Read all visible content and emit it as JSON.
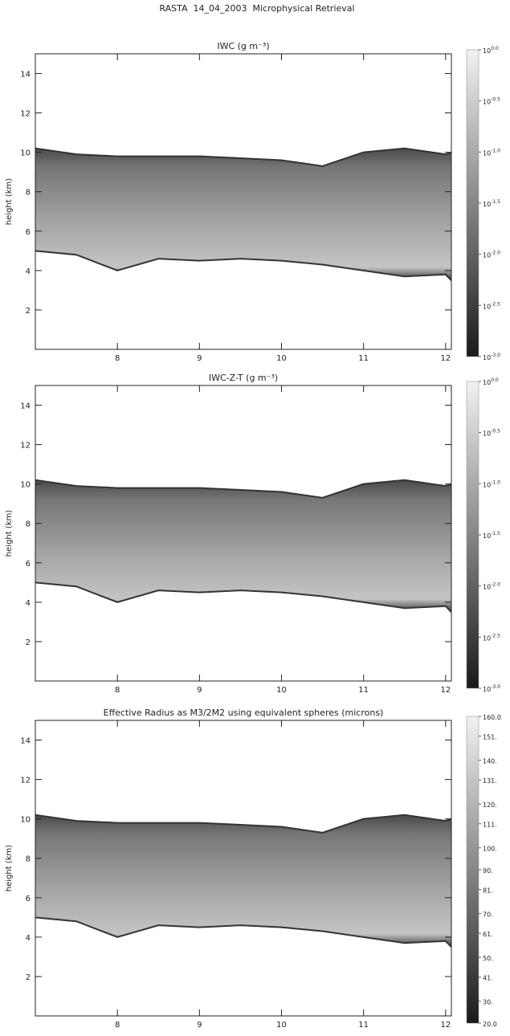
{
  "title": "RASTA  14_04_2003  Microphysical Retrieval",
  "chart_data": [
    {
      "type": "heatmap",
      "title": "IWC (g m⁻³)",
      "ylabel": "height (km)",
      "x": [
        7.0,
        7.5,
        8.0,
        8.5,
        9.0,
        9.5,
        10.0,
        10.5,
        11.0,
        11.5,
        12.0,
        12.07
      ],
      "top": [
        10.2,
        9.9,
        9.8,
        9.8,
        9.8,
        9.7,
        9.6,
        9.3,
        10.0,
        10.2,
        9.9,
        10.0
      ],
      "base": [
        5.0,
        4.8,
        4.0,
        4.6,
        4.5,
        4.6,
        4.5,
        4.3,
        4.0,
        3.7,
        3.8,
        3.5
      ],
      "xlim": [
        7.0,
        12.07
      ],
      "xticks": [
        8,
        9,
        10,
        11,
        12
      ],
      "ylim": [
        0,
        15
      ],
      "yticks": [
        2,
        4,
        6,
        8,
        10,
        12,
        14
      ],
      "colorbar": {
        "clim": [
          -3,
          0
        ],
        "ticks": [
          {
            "value": 0,
            "label": "10",
            "sup": "0.0"
          },
          {
            "value": -0.5,
            "label": "10",
            "sup": "-0.5"
          },
          {
            "value": -1,
            "label": "10",
            "sup": "-1.0"
          },
          {
            "value": -1.5,
            "label": "10",
            "sup": "-1.5"
          },
          {
            "value": -2,
            "label": "10",
            "sup": "-2.0"
          },
          {
            "value": -2.5,
            "label": "10",
            "sup": "-2.5"
          },
          {
            "value": -3,
            "label": "10",
            "sup": "-3.0"
          }
        ]
      }
    },
    {
      "type": "heatmap",
      "title": "IWC-Z-T (g m⁻³)",
      "ylabel": "height (km)",
      "x": [
        7.0,
        7.5,
        8.0,
        8.5,
        9.0,
        9.5,
        10.0,
        10.5,
        11.0,
        11.5,
        12.0,
        12.07
      ],
      "top": [
        10.2,
        9.9,
        9.8,
        9.8,
        9.8,
        9.7,
        9.6,
        9.3,
        10.0,
        10.2,
        9.9,
        10.0
      ],
      "base": [
        5.0,
        4.8,
        4.0,
        4.6,
        4.5,
        4.6,
        4.5,
        4.3,
        4.0,
        3.7,
        3.8,
        3.5
      ],
      "xlim": [
        7.0,
        12.07
      ],
      "xticks": [
        8,
        9,
        10,
        11,
        12
      ],
      "ylim": [
        0,
        15
      ],
      "yticks": [
        2,
        4,
        6,
        8,
        10,
        12,
        14
      ],
      "colorbar": {
        "clim": [
          -3,
          0
        ],
        "ticks": [
          {
            "value": 0,
            "label": "10",
            "sup": "0.0"
          },
          {
            "value": -0.5,
            "label": "10",
            "sup": "-0.5"
          },
          {
            "value": -1,
            "label": "10",
            "sup": "-1.0"
          },
          {
            "value": -1.5,
            "label": "10",
            "sup": "-1.5"
          },
          {
            "value": -2,
            "label": "10",
            "sup": "-2.0"
          },
          {
            "value": -2.5,
            "label": "10",
            "sup": "-2.5"
          },
          {
            "value": -3,
            "label": "10",
            "sup": "-3.0"
          }
        ]
      }
    },
    {
      "type": "heatmap",
      "title": "Effective Radius as M3/2M2 using equivalent spheres (microns)",
      "ylabel": "height (km)",
      "x": [
        7.0,
        7.5,
        8.0,
        8.5,
        9.0,
        9.5,
        10.0,
        10.5,
        11.0,
        11.5,
        12.0,
        12.07
      ],
      "top": [
        10.2,
        9.9,
        9.8,
        9.8,
        9.8,
        9.7,
        9.6,
        9.3,
        10.0,
        10.2,
        9.9,
        10.0
      ],
      "base": [
        5.0,
        4.8,
        4.0,
        4.6,
        4.5,
        4.6,
        4.5,
        4.3,
        4.0,
        3.7,
        3.8,
        3.5
      ],
      "xlim": [
        7.0,
        12.07
      ],
      "xticks": [
        8,
        9,
        10,
        11,
        12
      ],
      "ylim": [
        0,
        15
      ],
      "yticks": [
        2,
        4,
        6,
        8,
        10,
        12,
        14
      ],
      "colorbar": {
        "clim": [
          20,
          160
        ],
        "ticks": [
          {
            "value": 160,
            "label": "160.0"
          },
          {
            "value": 151,
            "label": "151."
          },
          {
            "value": 140,
            "label": "140."
          },
          {
            "value": 131,
            "label": "131."
          },
          {
            "value": 120,
            "label": "120."
          },
          {
            "value": 111,
            "label": "111."
          },
          {
            "value": 100,
            "label": "100."
          },
          {
            "value": 90,
            "label": "90."
          },
          {
            "value": 81,
            "label": "81."
          },
          {
            "value": 70,
            "label": "70."
          },
          {
            "value": 61,
            "label": "61."
          },
          {
            "value": 50,
            "label": "50."
          },
          {
            "value": 41,
            "label": "41."
          },
          {
            "value": 30,
            "label": "30."
          },
          {
            "value": 20,
            "label": "20.0"
          }
        ]
      }
    }
  ]
}
